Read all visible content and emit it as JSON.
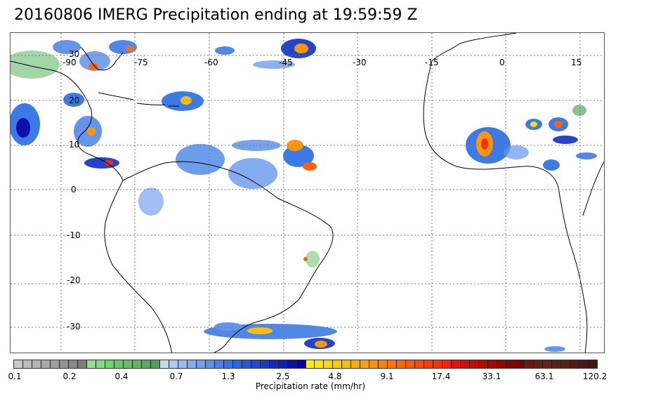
{
  "title": "20160806 IMERG Precipitation ending at 19:59:59 Z",
  "map": {
    "longitude_labels": [
      "-90",
      "-75",
      "-60",
      "-45",
      "-30",
      "-15",
      "0",
      "15"
    ],
    "latitude_labels": [
      "30",
      "20",
      "10",
      "0",
      "-10",
      "-20",
      "-30"
    ],
    "land_color": "#ffffff",
    "coast_color": "#000000",
    "grid_color": "#777777"
  },
  "colorbar": {
    "caption": "Precipitation rate (mm/hr)",
    "tick_labels": [
      "0.1",
      "0.2",
      "0.4",
      "0.7",
      "1.3",
      "2.5",
      "4.8",
      "9.1",
      "17.4",
      "33.1",
      "63.1",
      "120.2"
    ],
    "colors": [
      "#c8c8c8",
      "#bdbdbd",
      "#b3b3b3",
      "#a8a8a8",
      "#9e9e9e",
      "#939393",
      "#898989",
      "#7e7e7e",
      "#8fe38f",
      "#7fdc7f",
      "#6fd16f",
      "#68c96a",
      "#63bf66",
      "#5db562",
      "#58ab5e",
      "#52a059",
      "#c7d7f5",
      "#b2c8f3",
      "#9cbaf1",
      "#87acee",
      "#729eec",
      "#5c90ea",
      "#4782e8",
      "#3274e5",
      "#2a65e0",
      "#2557d8",
      "#1f49d0",
      "#1a3bc8",
      "#142dc0",
      "#0f1fb8",
      "#0911b0",
      "#0403a8",
      "#fff200",
      "#ffe500",
      "#ffd700",
      "#ffc900",
      "#ffbb00",
      "#ffad00",
      "#ff9f00",
      "#ff9100",
      "#ff8300",
      "#ff7500",
      "#ff6700",
      "#ff5900",
      "#ff4a00",
      "#ff3c00",
      "#ff2e00",
      "#ff2000",
      "#e81000",
      "#d80c00",
      "#c80900",
      "#b80600",
      "#a80400",
      "#980200",
      "#880000",
      "#7a0000",
      "#6a1a10",
      "#652018",
      "#602418",
      "#5b2218",
      "#562016",
      "#511c14",
      "#4c1a12",
      "#471810"
    ]
  }
}
